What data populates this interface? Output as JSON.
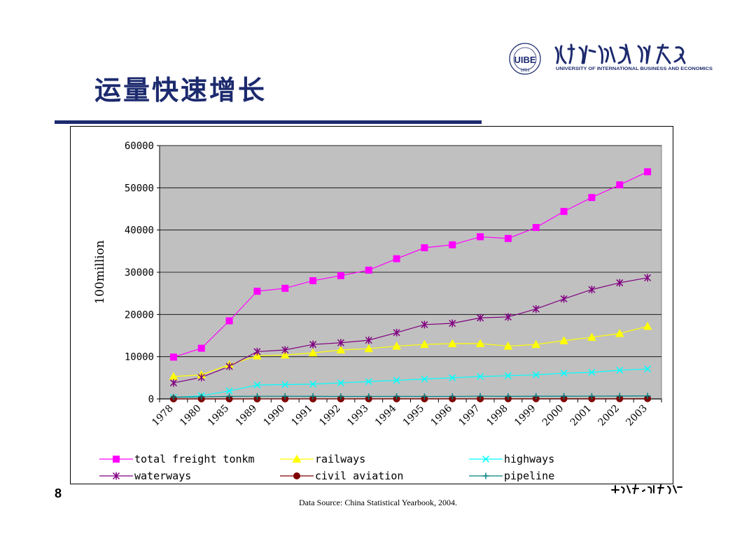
{
  "slide": {
    "title": "运量快速增长",
    "page_number": "8",
    "source": "Data Source: China Statistical Yearbook, 2004.",
    "logo_english": "UNIVERSITY OF INTERNATIONAL BUSINESS AND ECONOMICS",
    "logo_year": "1951",
    "logo_abbrev": "UIBE",
    "accent_color": "#1c2a6e"
  },
  "chart_data": {
    "type": "line",
    "title": "",
    "xlabel": "",
    "ylabel": "100million",
    "ylim": [
      0,
      60000
    ],
    "yticks": [
      0,
      10000,
      20000,
      30000,
      40000,
      50000,
      60000
    ],
    "grid": true,
    "legend_position": "bottom",
    "plot_background": "#c0c0c0",
    "categories": [
      "1978",
      "1980",
      "1985",
      "1989",
      "1990",
      "1991",
      "1992",
      "1993",
      "1994",
      "1995",
      "1996",
      "1997",
      "1998",
      "1999",
      "2000",
      "2001",
      "2002",
      "2003"
    ],
    "series": [
      {
        "name": "total freight tonkm",
        "color": "#ff00ff",
        "marker": "square",
        "values": [
          9900,
          12000,
          18500,
          25500,
          26200,
          28000,
          29200,
          30500,
          33200,
          35800,
          36500,
          38400,
          38000,
          40600,
          44400,
          47700,
          50700,
          53800
        ]
      },
      {
        "name": "railways",
        "color": "#ffff00",
        "marker": "triangle",
        "values": [
          5300,
          5700,
          8100,
          10200,
          10400,
          10900,
          11600,
          11900,
          12500,
          12900,
          13100,
          13100,
          12500,
          12900,
          13800,
          14600,
          15500,
          17200
        ]
      },
      {
        "name": "highways",
        "color": "#00ffff",
        "marker": "x",
        "values": [
          350,
          760,
          1900,
          3300,
          3400,
          3500,
          3800,
          4100,
          4400,
          4700,
          5000,
          5300,
          5500,
          5700,
          6100,
          6300,
          6800,
          7100
        ]
      },
      {
        "name": "waterways",
        "color": "#800080",
        "marker": "star",
        "values": [
          3800,
          5100,
          7700,
          11200,
          11600,
          12900,
          13300,
          13900,
          15700,
          17600,
          17900,
          19200,
          19400,
          21300,
          23700,
          25900,
          27500,
          28700
        ]
      },
      {
        "name": "civil aviation",
        "color": "#800000",
        "marker": "circle",
        "values": [
          1,
          1,
          4,
          7,
          8,
          10,
          13,
          17,
          19,
          22,
          25,
          29,
          34,
          42,
          50,
          44,
          52,
          58
        ]
      },
      {
        "name": "pipeline",
        "color": "#008080",
        "marker": "plus",
        "values": [
          430,
          490,
          600,
          630,
          630,
          620,
          590,
          590,
          610,
          590,
          590,
          650,
          600,
          640,
          640,
          650,
          680,
          700
        ]
      }
    ]
  }
}
